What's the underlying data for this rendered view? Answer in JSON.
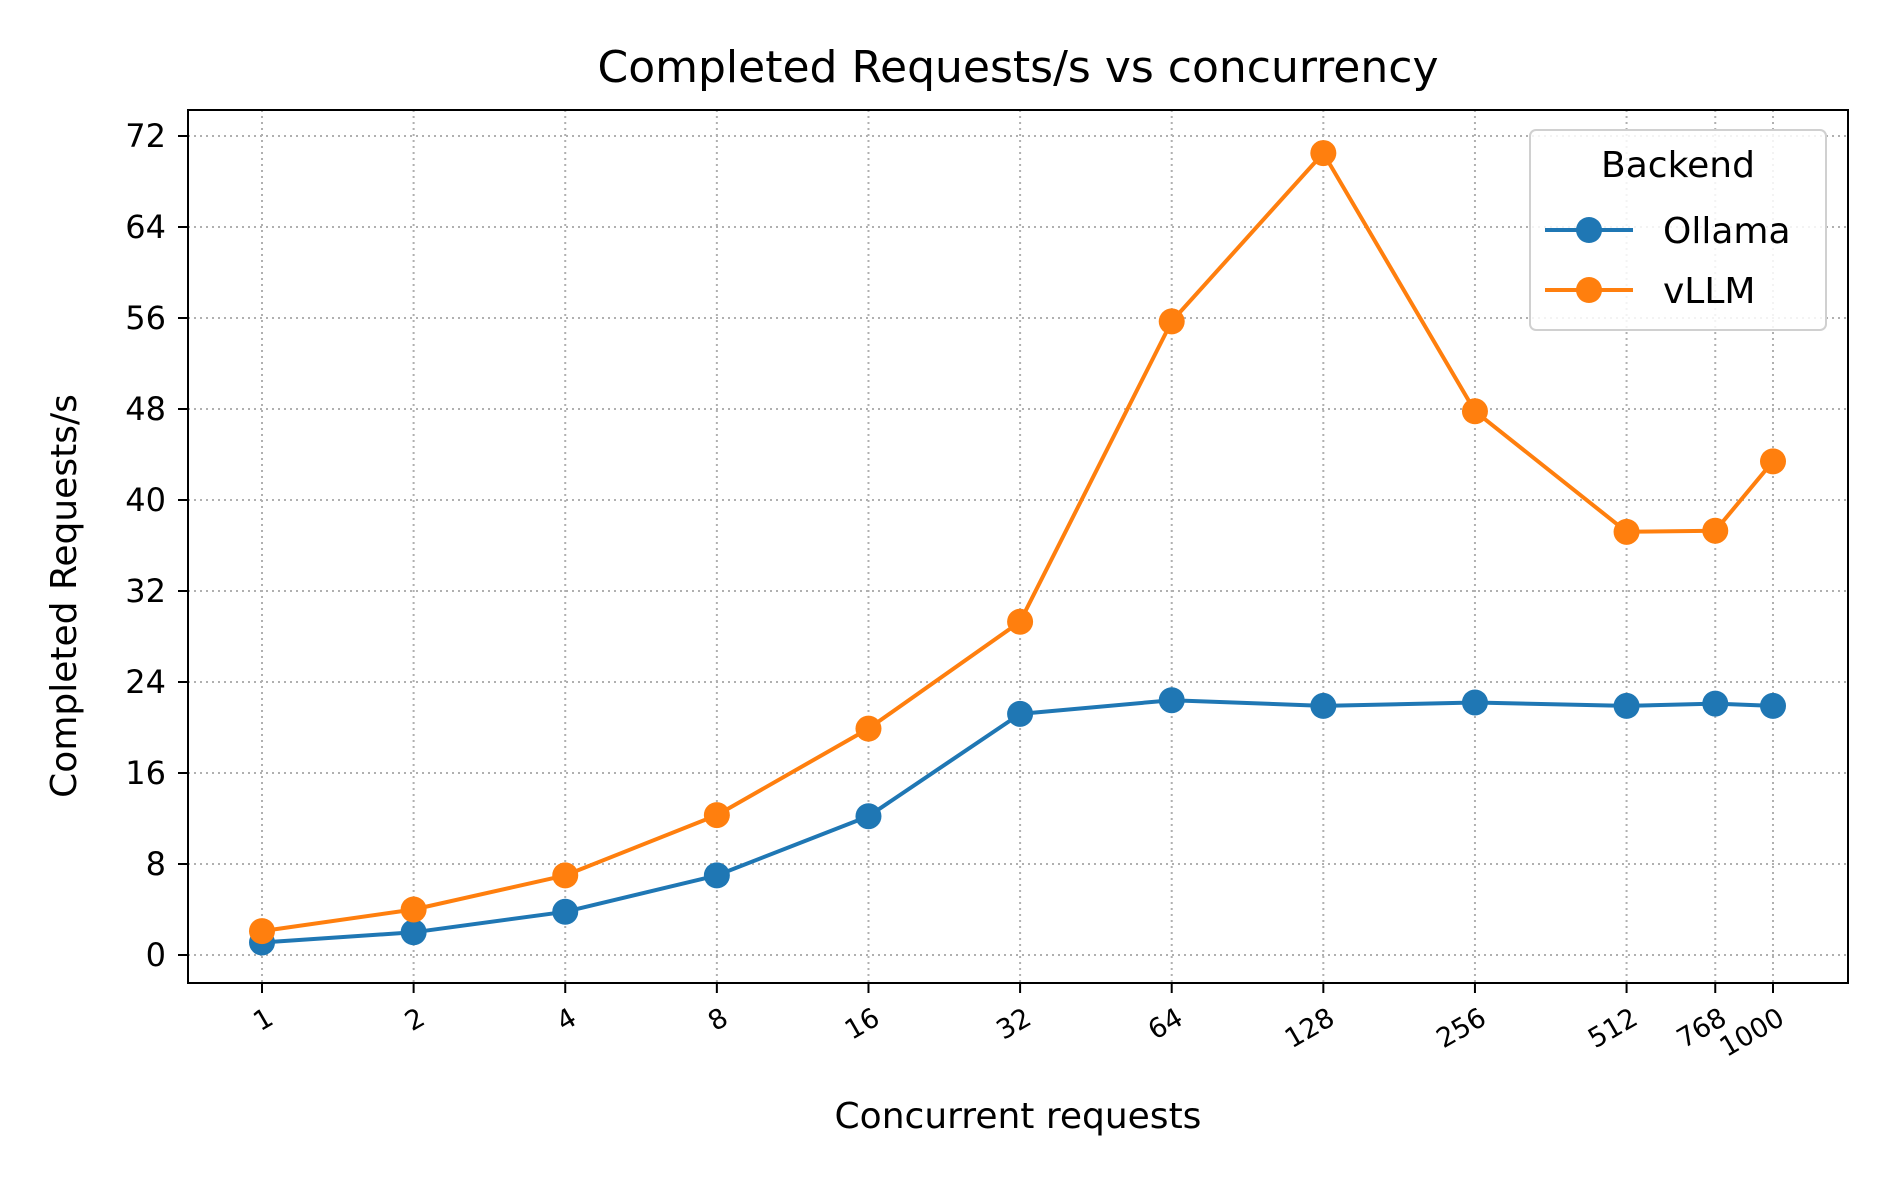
{
  "chart_data": {
    "type": "line",
    "title": "Completed Requests/s vs concurrency",
    "xlabel": "Concurrent requests",
    "ylabel": "Completed Requests/s",
    "categories": [
      "1",
      "2",
      "4",
      "8",
      "16",
      "32",
      "64",
      "128",
      "256",
      "512",
      "768",
      "1000"
    ],
    "x": [
      1,
      2,
      4,
      8,
      16,
      32,
      64,
      128,
      256,
      512,
      768,
      1000
    ],
    "x_scale": "log2",
    "ylim": [
      -2.4,
      74.5
    ],
    "yticks": [
      0,
      8,
      16,
      24,
      32,
      40,
      48,
      56,
      64,
      72
    ],
    "grid": true,
    "legend": {
      "title": "Backend",
      "placement": "top-right"
    },
    "series": [
      {
        "name": "Ollama",
        "color": "#1f77b4",
        "values": [
          1.1,
          2.0,
          3.8,
          7.0,
          12.2,
          21.2,
          22.4,
          21.9,
          22.2,
          21.9,
          22.1,
          21.9
        ]
      },
      {
        "name": "vLLM",
        "color": "#ff7f0e",
        "values": [
          2.1,
          4.0,
          7.0,
          12.3,
          19.9,
          29.3,
          55.7,
          70.5,
          47.8,
          37.2,
          37.3,
          43.4
        ]
      }
    ]
  }
}
